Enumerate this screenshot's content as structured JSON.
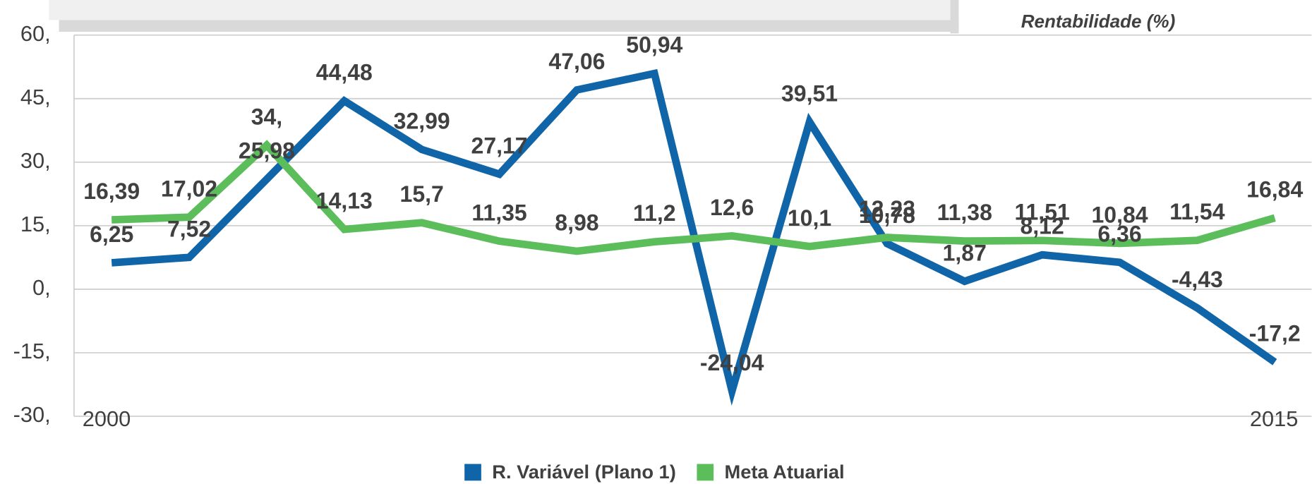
{
  "chart_data": {
    "type": "line",
    "title": "Rentabilidade (%)",
    "categories": [
      "2000",
      null,
      null,
      null,
      null,
      null,
      null,
      null,
      null,
      null,
      null,
      null,
      null,
      null,
      null,
      "2015"
    ],
    "series": [
      {
        "name": "R. Variável (Plano 1)",
        "color": "#0f65a7",
        "values": [
          6.25,
          7.52,
          25.98,
          44.48,
          32.99,
          27.17,
          47.06,
          50.94,
          -24.04,
          39.51,
          10.78,
          1.87,
          8.12,
          6.36,
          -4.43,
          -17.2
        ],
        "value_labels": [
          "6,25",
          "7,52",
          "25,98",
          "44,48",
          "32,99",
          "27,17",
          "47,06",
          "50,94",
          "-24,04",
          "39,51",
          "10,78",
          "1,87",
          "8,12",
          "6,36",
          "-4,43",
          "-17,2"
        ]
      },
      {
        "name": "Meta Atuarial",
        "color": "#5cbd5b",
        "values": [
          16.39,
          17.02,
          34,
          14.13,
          15.7,
          11.35,
          8.98,
          11.2,
          12.6,
          10.1,
          12.23,
          11.38,
          11.51,
          10.84,
          11.54,
          16.84
        ],
        "value_labels": [
          "16,39",
          "17,02",
          "34,",
          "14,13",
          "15,7",
          "11,35",
          "8,98",
          "11,2",
          "12,6",
          "10,1",
          "12,23",
          "11,38",
          "11,51",
          "10,84",
          "11,54",
          "16,84"
        ]
      }
    ],
    "ylim": [
      -30,
      60
    ],
    "yticks": [
      {
        "value": -30,
        "label": "-30,"
      },
      {
        "value": -15,
        "label": "-15,"
      },
      {
        "value": 0,
        "label": "0,"
      },
      {
        "value": 15,
        "label": "15,"
      },
      {
        "value": 30,
        "label": "30,"
      },
      {
        "value": 45,
        "label": "45,"
      },
      {
        "value": 60,
        "label": "60,"
      }
    ],
    "grid": true,
    "legend": "bottom"
  }
}
